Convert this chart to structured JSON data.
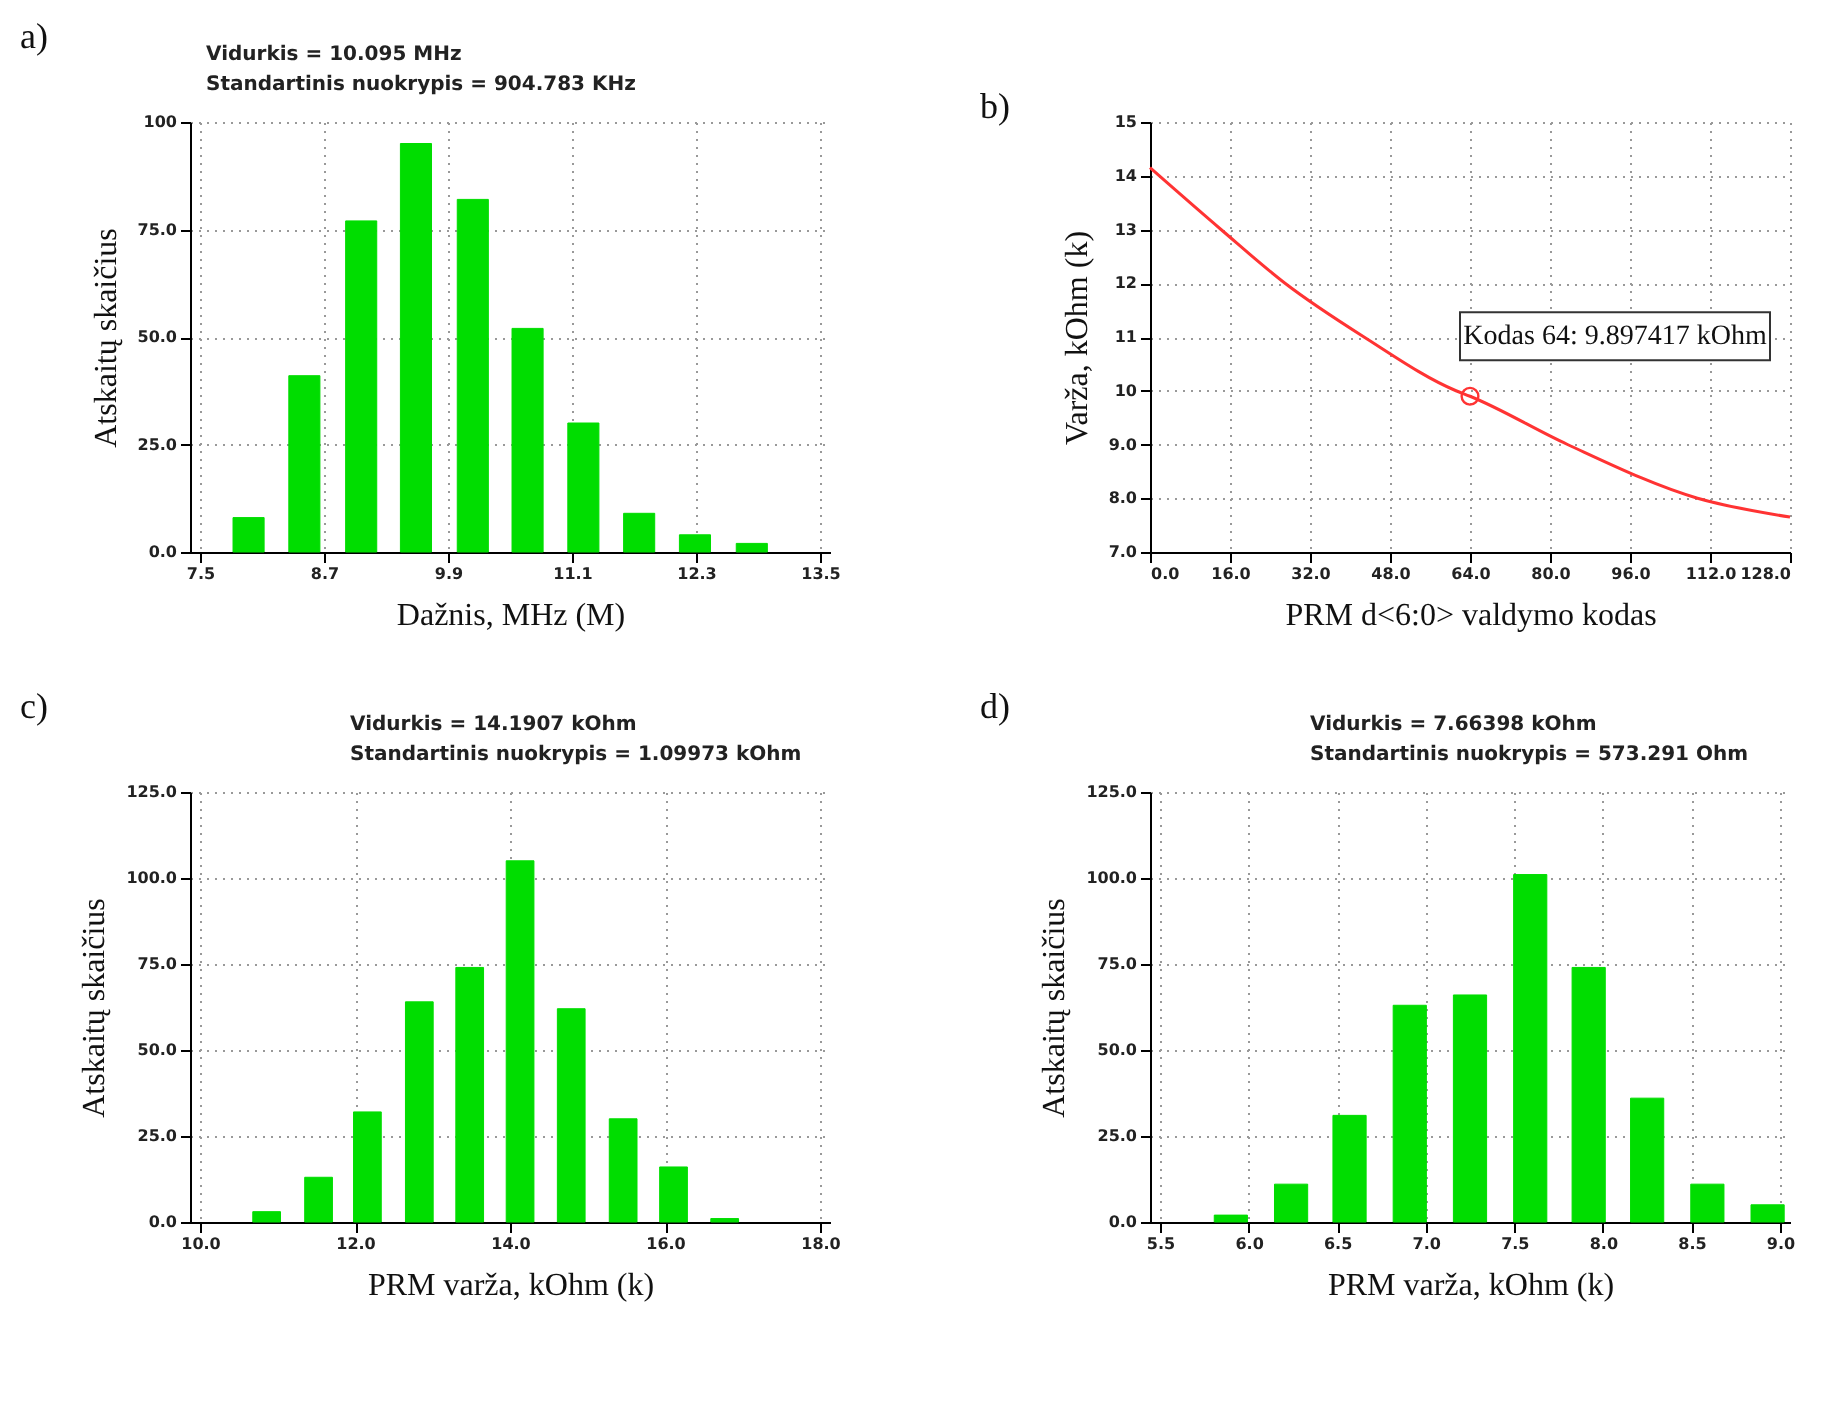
{
  "chart_data": [
    {
      "type": "bar",
      "title": "a)",
      "xlabel": "Dažnis, MHz (M)",
      "ylabel": "Atskaitų skaičius",
      "annotations": [
        "Vidurkis = 10.095 MHz",
        "Standartinis nuokrypis = 904.783 KHz"
      ],
      "x": [
        7.97,
        8.51,
        9.06,
        9.59,
        10.14,
        10.67,
        11.21,
        11.75,
        12.29,
        12.84
      ],
      "values": [
        8,
        41,
        77,
        95,
        82,
        52,
        30,
        9,
        4,
        2
      ],
      "color": "#00dd00",
      "xlim": [
        7.5,
        13.5
      ],
      "xticks": [
        7.5,
        8.7,
        9.9,
        11.1,
        12.3,
        13.5
      ],
      "ylim": [
        0,
        100
      ],
      "yticks": [
        {
          "value": 0,
          "label": "0.0"
        },
        {
          "value": 25,
          "label": "25.0"
        },
        {
          "value": 50,
          "label": "50.0"
        },
        {
          "value": 75,
          "label": "75.0"
        },
        100
      ],
      "grid": true
    },
    {
      "type": "line",
      "title": "b)",
      "xlabel": "PRM d<6:0> valdymo kodas",
      "ylabel": "Varža, kOhm (k)",
      "annotations": [
        {
          "text": "Kodas 64: 9.897417 kOhm",
          "x": 64,
          "y": 9.897417
        }
      ],
      "series": [
        {
          "color": "#ff3333",
          "x": [
            0,
            14.2,
            27,
            42.8,
            61.2,
            64,
            83.5,
            109.5,
            128
          ],
          "values": [
            14.15,
            13,
            12,
            11,
            10,
            9.897417,
            9,
            8,
            7.65
          ]
        },
        {
          "type": "scatter",
          "marker": "circle",
          "color": "#ff3333",
          "x": [
            64
          ],
          "values": [
            9.897417
          ]
        }
      ],
      "xlim": [
        0,
        128
      ],
      "xticks": [
        {
          "value": 0,
          "label": "0.0"
        },
        {
          "value": 16,
          "label": "16.0"
        },
        {
          "value": 32,
          "label": "32.0"
        },
        {
          "value": 48,
          "label": "48.0"
        },
        {
          "value": 64,
          "label": "64.0"
        },
        {
          "value": 80,
          "label": "80.0"
        },
        {
          "value": 96,
          "label": "96.0"
        },
        {
          "value": 112,
          "label": "112.0"
        },
        {
          "value": 128,
          "label": "128.0"
        }
      ],
      "ylim": [
        7,
        15
      ],
      "yticks": [
        {
          "value": 7,
          "label": "7.0"
        },
        {
          "value": 8,
          "label": "8.0"
        },
        {
          "value": 9,
          "label": "9.0"
        },
        10,
        11,
        12,
        13,
        14,
        15
      ],
      "grid": true
    },
    {
      "type": "bar",
      "title": "c)",
      "xlabel": "PRM varža, kOhm (k)",
      "ylabel": "Atskaitų skaičius",
      "annotations": [
        "Vidurkis = 14.1907 kOhm",
        "Standartinis nuokrypis = 1.09973 kOhm"
      ],
      "x": [
        10.86,
        11.53,
        12.16,
        12.83,
        13.48,
        14.13,
        14.79,
        15.46,
        16.11,
        16.77
      ],
      "values": [
        3,
        13,
        32,
        64,
        74,
        105,
        62,
        30,
        16,
        1
      ],
      "color": "#00dd00",
      "xlim": [
        10,
        18
      ],
      "xticks": [
        {
          "value": 10,
          "label": "10.0"
        },
        {
          "value": 12,
          "label": "12.0"
        },
        {
          "value": 14,
          "label": "14.0"
        },
        {
          "value": 16,
          "label": "16.0"
        },
        {
          "value": 18,
          "label": "18.0"
        }
      ],
      "ylim": [
        0,
        125
      ],
      "yticks": [
        {
          "value": 0,
          "label": "0.0"
        },
        {
          "value": 25,
          "label": "25.0"
        },
        {
          "value": 50,
          "label": "50.0"
        },
        {
          "value": 75,
          "label": "75.0"
        },
        {
          "value": 100,
          "label": "100.0"
        },
        {
          "value": 125,
          "label": "125.0"
        }
      ],
      "grid": true
    },
    {
      "type": "bar",
      "title": "d)",
      "xlabel": "PRM varža, kOhm (k)",
      "ylabel": "Atskaitų skaičius",
      "annotations": [
        "Vidurkis = 7.66398 kOhm",
        "Standartinis nuokrypis = 573.291 Ohm"
      ],
      "x": [
        5.9,
        6.24,
        6.57,
        6.91,
        7.25,
        7.59,
        7.92,
        8.25,
        8.59,
        8.93
      ],
      "values": [
        2,
        11,
        31,
        63,
        66,
        101,
        74,
        36,
        11,
        5
      ],
      "color": "#00dd00",
      "xlim": [
        5.5,
        9
      ],
      "xticks": [
        5.5,
        {
          "value": 6,
          "label": "6.0"
        },
        6.5,
        {
          "value": 7,
          "label": "7.0"
        },
        7.5,
        {
          "value": 8,
          "label": "8.0"
        },
        8.5,
        {
          "value": 9,
          "label": "9.0"
        }
      ],
      "ylim": [
        0,
        125
      ],
      "yticks": [
        {
          "value": 0,
          "label": "0.0"
        },
        {
          "value": 25,
          "label": "25.0"
        },
        {
          "value": 50,
          "label": "50.0"
        },
        {
          "value": 75,
          "label": "75.0"
        },
        {
          "value": 100,
          "label": "100.0"
        },
        {
          "value": 125,
          "label": "125.0"
        }
      ],
      "grid": true
    }
  ]
}
